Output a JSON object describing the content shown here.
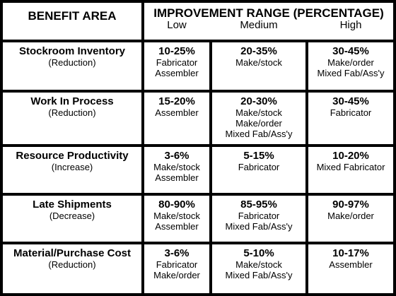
{
  "header": {
    "benefit_area": "BENEFIT AREA",
    "improvement_range": "IMPROVEMENT RANGE (PERCENTAGE)",
    "low": "Low",
    "medium": "Medium",
    "high": "High"
  },
  "rows": [
    {
      "title": "Stockroom Inventory",
      "note": "(Reduction)",
      "low": {
        "pct": "10-25%",
        "lines": [
          "Fabricator",
          "Assembler"
        ]
      },
      "medium": {
        "pct": "20-35%",
        "lines": [
          "Make/stock"
        ]
      },
      "high": {
        "pct": "30-45%",
        "lines": [
          "Make/order",
          "Mixed Fab/Ass'y"
        ]
      }
    },
    {
      "title": "Work In Process",
      "note": "(Reduction)",
      "low": {
        "pct": "15-20%",
        "lines": [
          "Assembler"
        ]
      },
      "medium": {
        "pct": "20-30%",
        "lines": [
          "Make/stock",
          "Make/order",
          "Mixed Fab/Ass'y"
        ]
      },
      "high": {
        "pct": "30-45%",
        "lines": [
          "Fabricator"
        ]
      }
    },
    {
      "title": "Resource Productivity",
      "note": "(Increase)",
      "low": {
        "pct": "3-6%",
        "lines": [
          "Make/stock",
          "Assembler"
        ]
      },
      "medium": {
        "pct": "5-15%",
        "lines": [
          "Fabricator"
        ]
      },
      "high": {
        "pct": "10-20%",
        "lines": [
          "Mixed Fabricator"
        ]
      }
    },
    {
      "title": "Late Shipments",
      "note": "(Decrease)",
      "low": {
        "pct": "80-90%",
        "lines": [
          "Make/stock",
          "Assembler"
        ]
      },
      "medium": {
        "pct": "85-95%",
        "lines": [
          "Fabricator",
          "Mixed Fab/Ass'y"
        ]
      },
      "high": {
        "pct": "90-97%",
        "lines": [
          "Make/order"
        ]
      }
    },
    {
      "title": "Material/Purchase Cost",
      "note": "(Reduction)",
      "low": {
        "pct": "3-6%",
        "lines": [
          "Fabricator",
          "Make/order"
        ]
      },
      "medium": {
        "pct": "5-10%",
        "lines": [
          "Make/stock",
          "Mixed Fab/Ass'y"
        ]
      },
      "high": {
        "pct": "10-17%",
        "lines": [
          "Assembler"
        ]
      }
    }
  ]
}
